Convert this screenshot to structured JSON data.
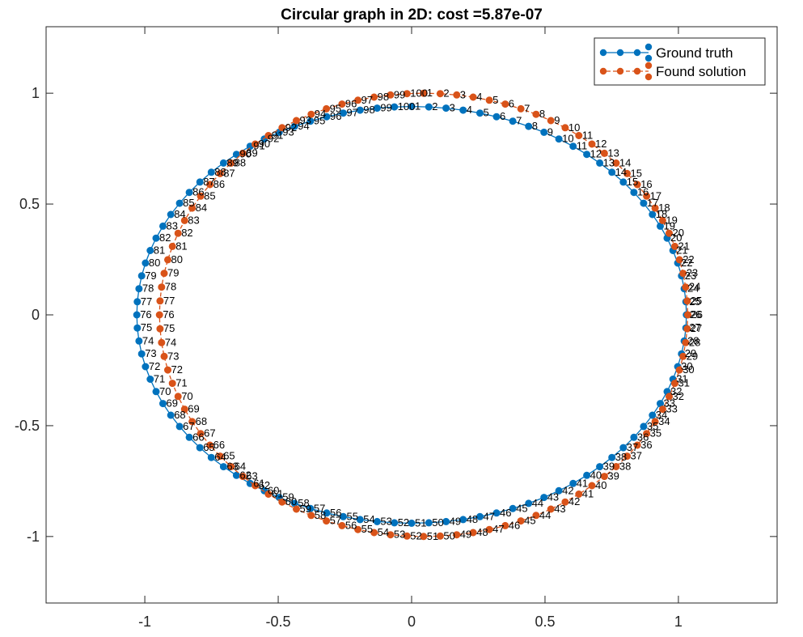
{
  "chart_data": {
    "type": "line",
    "title": "Circular graph in 2D: cost =5.87e-07",
    "xlabel": "",
    "ylabel": "",
    "xlim": [
      -1.37,
      1.37
    ],
    "ylim": [
      -1.3,
      1.3
    ],
    "xticks": [
      -1,
      -0.5,
      0,
      0.5,
      1
    ],
    "xtick_labels": [
      "-1",
      "-0.5",
      "0",
      "0.5",
      "1"
    ],
    "yticks": [
      -1,
      -0.5,
      0,
      0.5,
      1
    ],
    "ytick_labels": [
      "-1",
      "-0.5",
      "0",
      "0.5",
      "1"
    ],
    "grid": false,
    "legend_position": "top-right",
    "n_points": 100,
    "series": [
      {
        "name": "Ground truth",
        "color": "#0072BD",
        "marker": "circle",
        "linestyle": "solid",
        "shape": "ellipse",
        "center": [
          0,
          0
        ],
        "radius_x": 1.03,
        "radius_y": 0.94,
        "start_angle_deg": 90,
        "direction": "clockwise"
      },
      {
        "name": "Found solution",
        "color": "#D95319",
        "marker": "circle",
        "linestyle": "dashed",
        "shape": "ellipse",
        "center": [
          0.045,
          0
        ],
        "radius_x": 0.99,
        "radius_y": 1.0,
        "start_angle_deg": 90,
        "direction": "clockwise"
      }
    ]
  }
}
